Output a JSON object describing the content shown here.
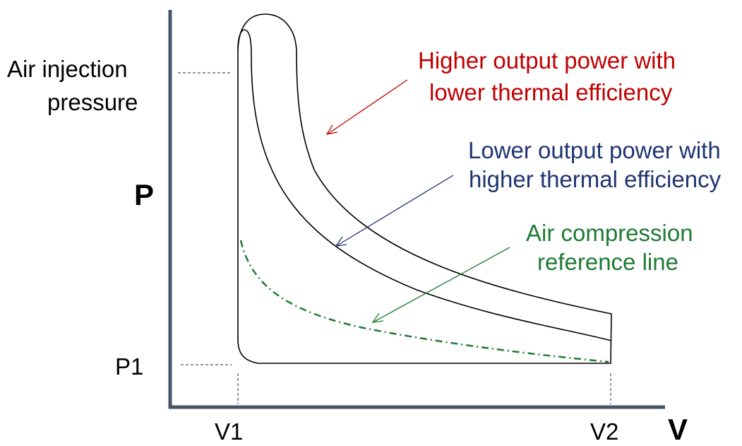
{
  "diagram": {
    "y_axis_label": "P",
    "x_axis_label": "V",
    "pressure_label_line1": "Air injection",
    "pressure_label_line2": "pressure",
    "p1_label": "P1",
    "v1_label": "V1",
    "v2_label": "V2",
    "annotations": {
      "higher_output_line1": "Higher output power with",
      "higher_output_line2": "lower thermal efficiency",
      "lower_output_line1": "Lower output power with",
      "lower_output_line2": "higher thermal efficiency",
      "reference_line1": "Air compression",
      "reference_line2": "reference line"
    },
    "colors": {
      "axis": "#46546a",
      "curves": "#000000",
      "higher_output": "#c00000",
      "lower_output": "#1f3470",
      "reference": "#1e7b34",
      "guide_lines": "#46546a"
    }
  }
}
